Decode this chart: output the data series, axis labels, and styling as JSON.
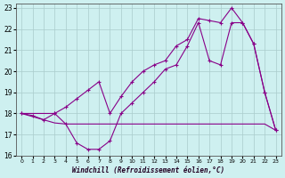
{
  "xlabel": "Windchill (Refroidissement éolien,°C)",
  "background_color": "#cef0f0",
  "grid_color": "#aacccc",
  "line_color": "#880088",
  "xlim": [
    -0.5,
    23.5
  ],
  "ylim": [
    16,
    23.2
  ],
  "yticks": [
    16,
    17,
    18,
    19,
    20,
    21,
    22,
    23
  ],
  "xticks": [
    0,
    1,
    2,
    3,
    4,
    5,
    6,
    7,
    8,
    9,
    10,
    11,
    12,
    13,
    14,
    15,
    16,
    17,
    18,
    19,
    20,
    21,
    22,
    23
  ],
  "line1_x": [
    0,
    1,
    2,
    3,
    4,
    5,
    6,
    7,
    8,
    9,
    10,
    11,
    12,
    13,
    14,
    15,
    16,
    17,
    18,
    19,
    20,
    21,
    22,
    23
  ],
  "line1_y": [
    18.0,
    17.9,
    17.7,
    18.0,
    17.5,
    16.6,
    16.3,
    16.3,
    16.7,
    18.0,
    18.5,
    19.0,
    19.5,
    20.1,
    20.3,
    21.2,
    22.3,
    20.5,
    20.3,
    22.3,
    22.3,
    21.3,
    19.0,
    17.2
  ],
  "line2_x": [
    0,
    1,
    2,
    3,
    4,
    5,
    6,
    7,
    8,
    9,
    10,
    11,
    12,
    13,
    14,
    15,
    16,
    17,
    18,
    19,
    20,
    21,
    22,
    23
  ],
  "line2_y": [
    18.0,
    17.85,
    17.7,
    17.55,
    17.5,
    17.5,
    17.5,
    17.5,
    17.5,
    17.5,
    17.5,
    17.5,
    17.5,
    17.5,
    17.5,
    17.5,
    17.5,
    17.5,
    17.5,
    17.5,
    17.5,
    17.5,
    17.5,
    17.2
  ],
  "line3_x": [
    0,
    3,
    4,
    5,
    6,
    7,
    8,
    9,
    10,
    11,
    12,
    13,
    14,
    15,
    16,
    17,
    18,
    19,
    20,
    21,
    22,
    23
  ],
  "line3_y": [
    18.0,
    18.0,
    18.3,
    18.7,
    19.1,
    19.5,
    18.0,
    18.8,
    19.5,
    20.0,
    20.3,
    20.5,
    21.2,
    21.5,
    22.5,
    22.4,
    22.3,
    23.0,
    22.3,
    21.3,
    19.0,
    17.2
  ]
}
